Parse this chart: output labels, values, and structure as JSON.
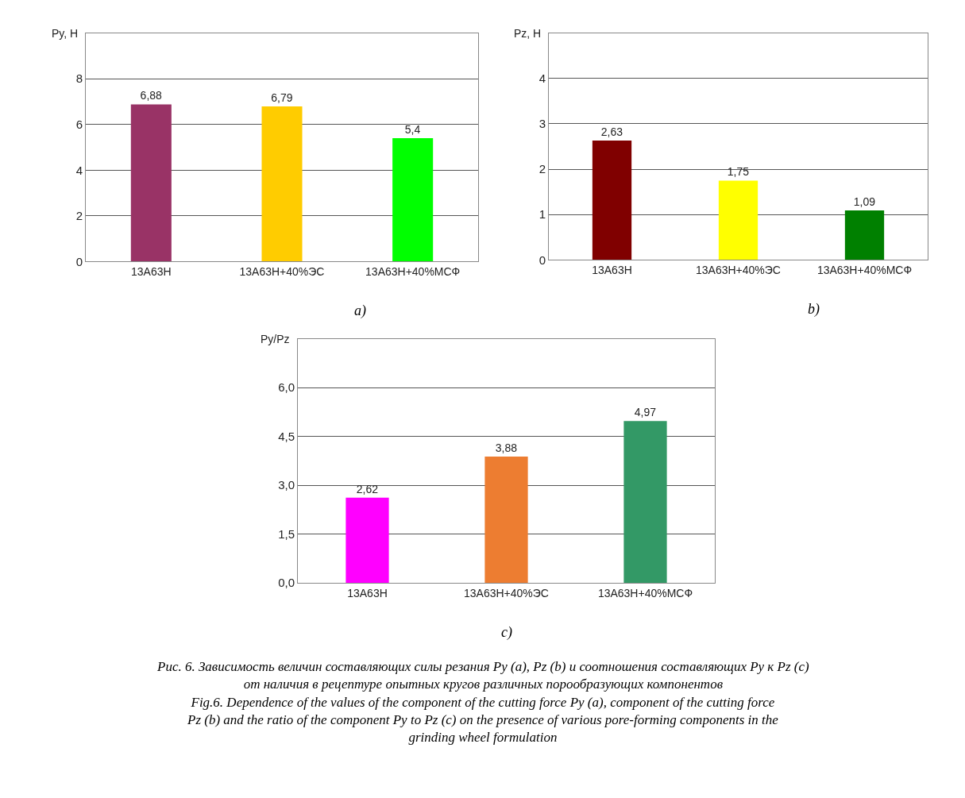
{
  "chart_data": [
    {
      "type": "bar",
      "ylabel": "Py, Н",
      "categories": [
        "13А63Н",
        "13А63Н+40%ЭС",
        "13А63Н+40%МСФ"
      ],
      "values": [
        6.88,
        6.79,
        5.4
      ],
      "value_labels": [
        "6,88",
        "6,79",
        "5,4"
      ],
      "colors": [
        "#993366",
        "#ffcc00",
        "#00ff00"
      ],
      "ylim": [
        0,
        10
      ],
      "yticks": [
        0,
        2,
        4,
        6,
        8
      ],
      "grid": "y",
      "annotations": [
        "a)"
      ]
    },
    {
      "type": "bar",
      "ylabel": "Pz, Н",
      "categories": [
        "13А63Н",
        "13А63Н+40%ЭС",
        "13А63Н+40%МСФ"
      ],
      "values": [
        2.63,
        1.75,
        1.09
      ],
      "value_labels": [
        "2,63",
        "1,75",
        "1,09"
      ],
      "colors": [
        "#800000",
        "#ffff00",
        "#008000"
      ],
      "ylim": [
        0,
        5
      ],
      "yticks": [
        0,
        1,
        2,
        3,
        4
      ],
      "grid": "y",
      "annotations": [
        "b)"
      ]
    },
    {
      "type": "bar",
      "ylabel": "Py/Pz",
      "categories": [
        "13А63Н",
        "13А63Н+40%ЭС",
        "13А63Н+40%МСФ"
      ],
      "values": [
        2.62,
        3.88,
        4.97
      ],
      "value_labels": [
        "2,62",
        "3,88",
        "4,97"
      ],
      "colors": [
        "#ff00ff",
        "#ed7d31",
        "#339966"
      ],
      "ylim": [
        0,
        7.5
      ],
      "yticks": [
        {
          "value": 0,
          "label": "0,0"
        },
        {
          "value": 1.5,
          "label": "1,5"
        },
        {
          "value": 3,
          "label": "3,0"
        },
        {
          "value": 4.5,
          "label": "4,5"
        },
        {
          "value": 6,
          "label": "6,0"
        }
      ],
      "grid": "y",
      "annotations": [
        "c)",
        "Рис. 6. Зависимость величин составляющих силы резания Py (a), Pz (b) и соотношения составляющих Py к Pz (c) от наличия в рецептуре опытных кругов различных порообразующих компонентов",
        "Fig.6. Dependence of the values of the component of the cutting force Py (a), component of the cutting force Pz (b) and the ratio of the component Py to Pz (c) on the presence of various pore-forming components in the grinding wheel formulation"
      ]
    }
  ]
}
